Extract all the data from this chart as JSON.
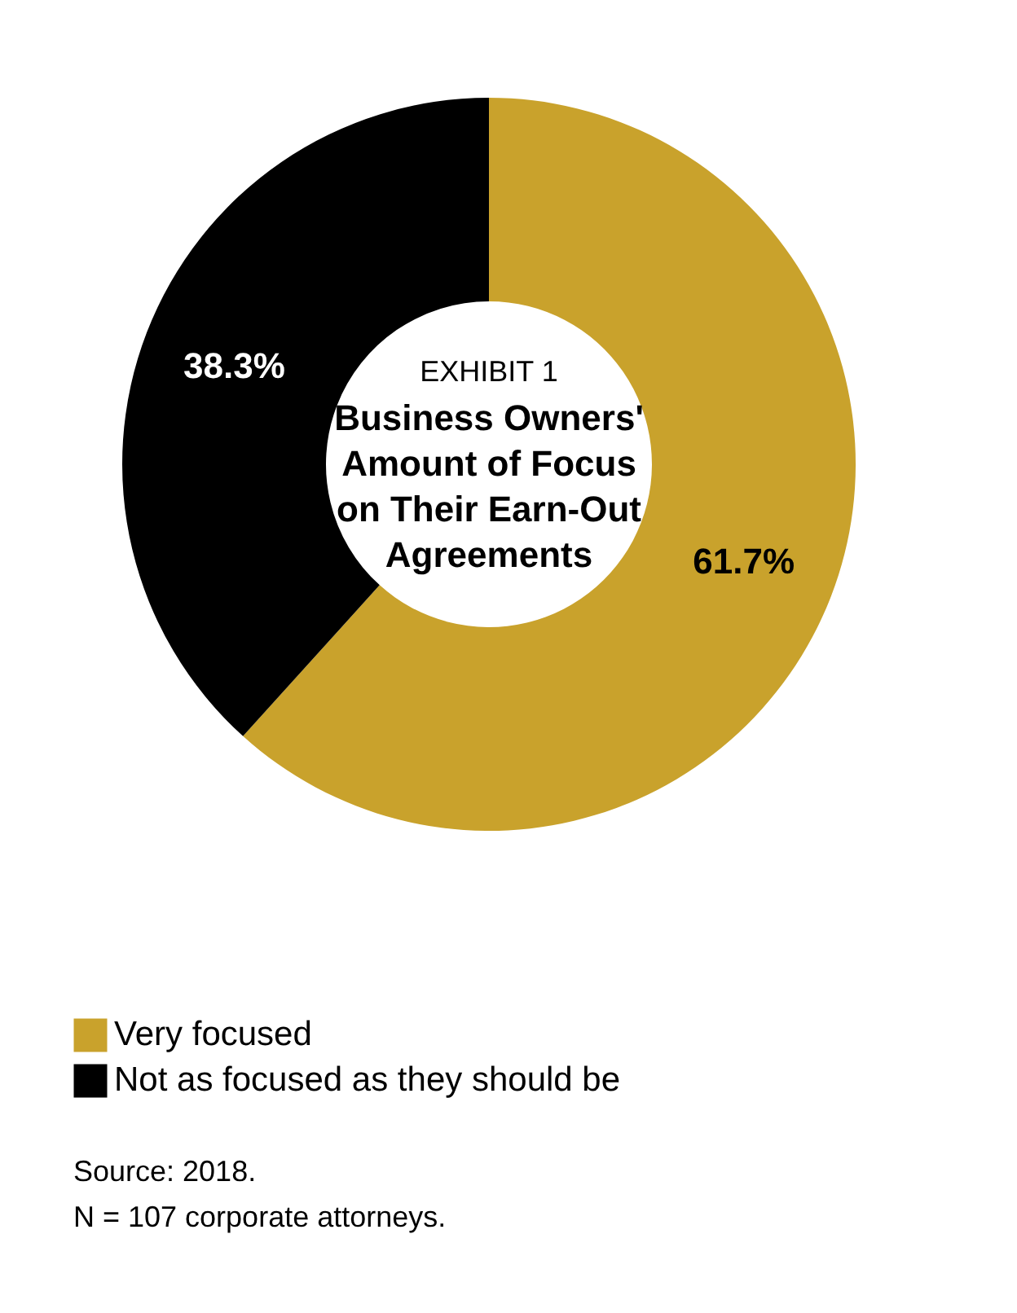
{
  "chart_data": {
    "type": "donut",
    "title": "EXHIBIT 1",
    "subtitle": "Business Owners' Amount of Focus on Their Earn-Out Agreements",
    "categories": [
      "Very focused",
      "Not as focused as they should be"
    ],
    "values": [
      61.7,
      38.3
    ],
    "colors": [
      "#c9a22c",
      "#000000"
    ],
    "value_labels": [
      "61.7%",
      "38.3%"
    ],
    "legend": "bottom left",
    "annotations": [
      "Source: 2018.",
      "N = 107 corporate attorneys."
    ]
  }
}
